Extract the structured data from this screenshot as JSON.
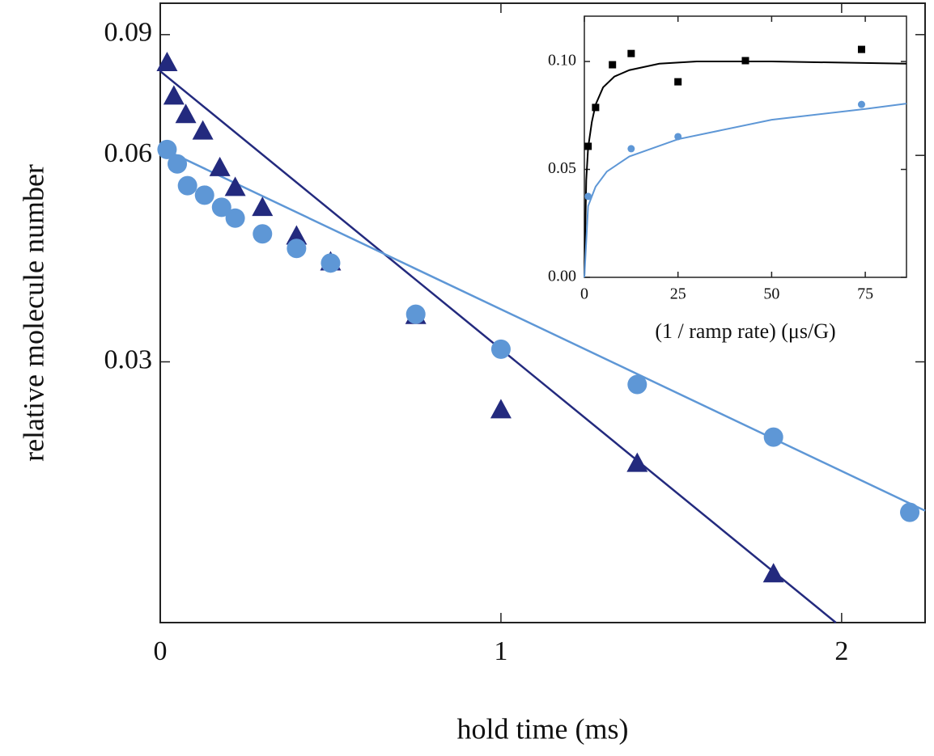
{
  "chart_data": [
    {
      "type": "scatter",
      "xlabel": "hold time (ms)",
      "ylabel": "relative molecule number",
      "xlim": [
        0,
        2.245
      ],
      "ylim": [
        0.0125,
        0.1
      ],
      "ylog": true,
      "xticks": [
        0,
        1,
        2
      ],
      "yticks": [
        0.03,
        0.06,
        0.09
      ],
      "series": [
        {
          "color": "#232a7e",
          "marker": "triangle",
          "x": [
            0.02,
            0.04,
            0.075,
            0.125,
            0.175,
            0.22,
            0.3,
            0.4,
            0.5,
            0.75,
            1.0,
            1.4,
            1.8
          ],
          "values": [
            0.0818,
            0.0731,
            0.0687,
            0.065,
            0.0575,
            0.0538,
            0.0503,
            0.0457,
            0.0419,
            0.035,
            0.0255,
            0.0213,
            0.0147
          ]
        },
        {
          "color": "#5e97d6",
          "marker": "circle",
          "x": [
            0.02,
            0.05,
            0.08,
            0.13,
            0.18,
            0.22,
            0.3,
            0.4,
            0.5,
            0.75,
            1.0,
            1.4,
            1.8,
            2.2
          ],
          "values": [
            0.0612,
            0.0583,
            0.0542,
            0.0525,
            0.0504,
            0.0486,
            0.0461,
            0.0439,
            0.0418,
            0.0352,
            0.0313,
            0.0278,
            0.0233,
            0.0181
          ]
        },
        {
          "color": "#232a7e",
          "marker": "line",
          "x": [
            0,
            1.983
          ],
          "values": [
            0.0796,
            0.0125
          ]
        },
        {
          "color": "#5e97d6",
          "marker": "line",
          "x": [
            0,
            2.245
          ],
          "values": [
            0.0616,
            0.0182
          ]
        }
      ]
    },
    {
      "type": "scatter",
      "xlabel": "(1 / ramp rate) (μs/G)",
      "xlim": [
        0,
        86
      ],
      "ylim": [
        0,
        0.121
      ],
      "xticks": [
        0,
        25,
        50,
        75
      ],
      "yticks": [
        {
          "value": 0,
          "label": "0.00"
        },
        0.05,
        {
          "value": 0.1,
          "label": "0.10"
        }
      ],
      "series": [
        {
          "color": "#000000",
          "marker": "square",
          "x": [
            1,
            3,
            7.5,
            12.5,
            25,
            43,
            74
          ],
          "values": [
            0.0607,
            0.0787,
            0.0985,
            0.1037,
            0.0906,
            0.1004,
            0.1056
          ]
        },
        {
          "color": "#5e97d6",
          "marker": "smallcircle",
          "x": [
            1,
            12.5,
            25,
            74
          ],
          "values": [
            0.0375,
            0.0596,
            0.0652,
            0.0801
          ]
        },
        {
          "color": "#000000",
          "marker": "line",
          "x": [
            0,
            0.5,
            1,
            2,
            3,
            5,
            8,
            12,
            20,
            30,
            50,
            86
          ],
          "values": [
            0,
            0.045,
            0.06,
            0.072,
            0.08,
            0.088,
            0.093,
            0.096,
            0.099,
            0.1,
            0.1,
            0.099
          ]
        },
        {
          "color": "#5e97d6",
          "marker": "line",
          "x": [
            0,
            1,
            3,
            6,
            12,
            25,
            50,
            75,
            86
          ],
          "values": [
            0,
            0.033,
            0.042,
            0.049,
            0.056,
            0.064,
            0.073,
            0.078,
            0.0805
          ]
        }
      ]
    }
  ]
}
